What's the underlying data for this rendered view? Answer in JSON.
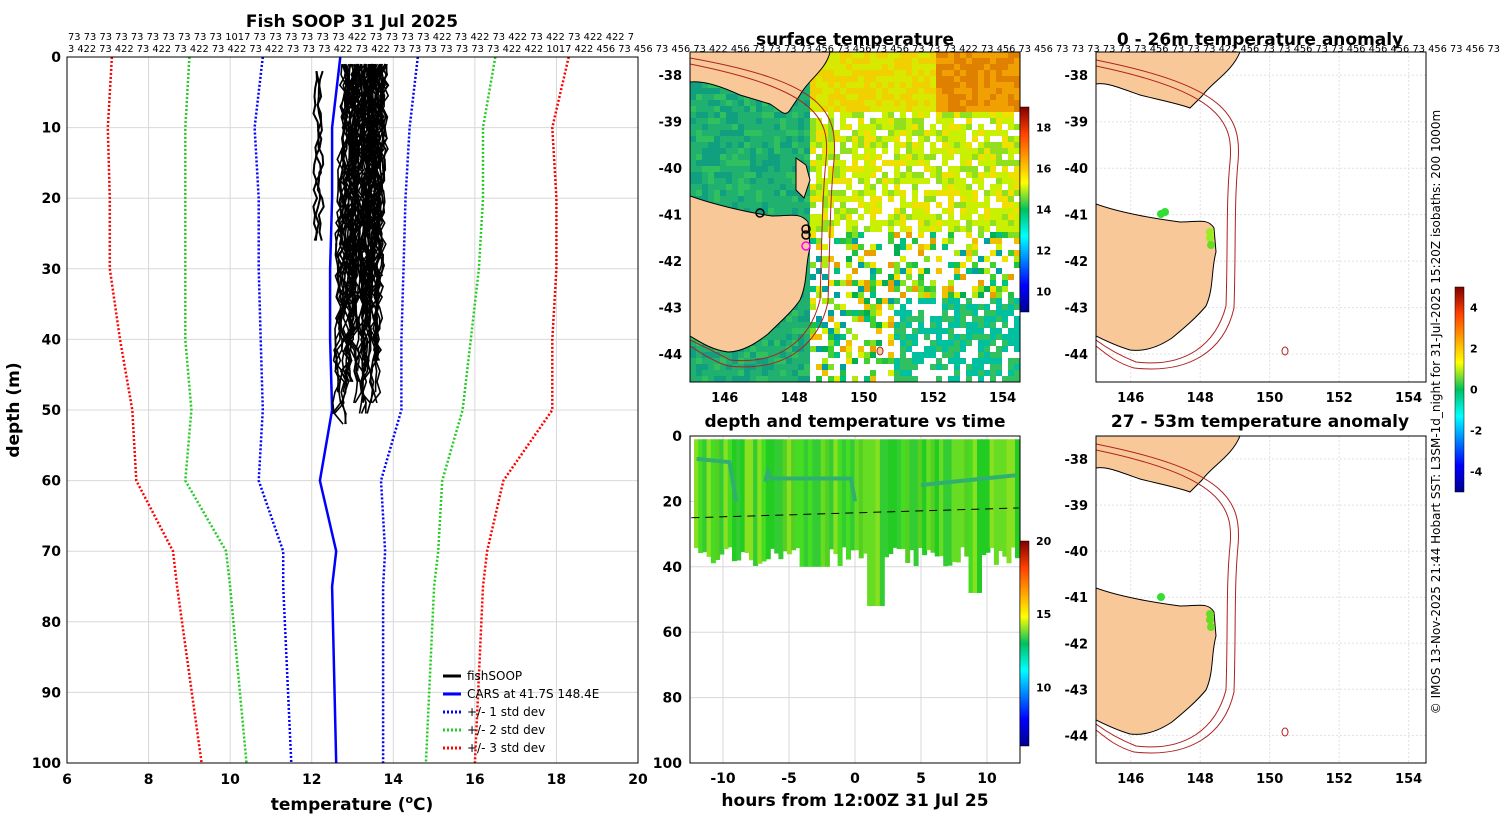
{
  "chart_data": [
    {
      "type": "line",
      "title": "Fish SOOP 31 Jul 2025",
      "xlabel": "temperature (°C)",
      "ylabel": "depth (m)",
      "xlim": [
        6,
        20
      ],
      "ylim": [
        100,
        0
      ],
      "xticks": [
        "6",
        "8",
        "10",
        "12",
        "14",
        "16",
        "18",
        "20"
      ],
      "yticks": [
        "0",
        "10",
        "20",
        "30",
        "40",
        "50",
        "60",
        "70",
        "80",
        "90",
        "100"
      ],
      "top_labels_row1": "73 73 73 73 73 73 73 73 73 73 1017 73 73 73 73 73 73 422 73 73 73 73 422 73 422 73 422 73 422 73 422 422 7",
      "top_labels_row2": "3 422 73 422 73 422 73 422 73 422 73 422 73 73 73 422 73 422 73 73 73 73 73 73 73 422 422 1017 422 456 73 456 73 456 73 422 456 73 73 73 73 456 73 456 73 456 73 73 73 422 73 456 73 456 73 73 73 73 73 73 456 73 73 73 422 456 73 73 456 73 73 456 456 456 73 456 73 456 73",
      "depths": [
        0,
        10,
        20,
        30,
        40,
        50,
        60,
        70,
        75,
        100
      ],
      "series": [
        {
          "name": "CARS at 41.7S 148.4E",
          "color": "#0000ff",
          "style": "solid",
          "values": [
            12.7,
            12.5,
            12.5,
            12.45,
            12.45,
            12.5,
            12.2,
            12.6,
            12.5,
            12.6
          ]
        },
        {
          "name": "+/- 1 std dev",
          "color": "#0000ff",
          "style": "dotted",
          "values": [
            10.8,
            10.6,
            10.7,
            10.7,
            10.75,
            10.8,
            10.7,
            11.3,
            11.3,
            11.5
          ]
        },
        {
          "name": "+/- 1 std dev upper",
          "color": "#0000ff",
          "style": "dotted",
          "values": [
            14.6,
            14.4,
            14.3,
            14.25,
            14.2,
            14.2,
            13.7,
            13.8,
            13.75,
            13.75
          ]
        },
        {
          "name": "+/- 2 std dev",
          "color": "#22cc22",
          "style": "dotted",
          "values": [
            9.0,
            8.9,
            8.9,
            8.9,
            8.9,
            9.05,
            8.9,
            9.9,
            10.0,
            10.4
          ]
        },
        {
          "name": "+/- 2 std dev upper",
          "color": "#22cc22",
          "style": "dotted",
          "values": [
            16.5,
            16.2,
            16.2,
            16.1,
            15.9,
            15.7,
            15.2,
            15.1,
            15.0,
            14.8
          ]
        },
        {
          "name": "+/- 3 std dev",
          "color": "#ff0000",
          "style": "dotted",
          "values": [
            7.1,
            7.0,
            7.05,
            7.05,
            7.3,
            7.6,
            7.7,
            8.6,
            8.7,
            9.3
          ]
        },
        {
          "name": "+/- 3 std dev upper",
          "color": "#ff0000",
          "style": "dotted",
          "values": [
            18.3,
            17.9,
            18.0,
            18.0,
            17.9,
            17.9,
            16.7,
            16.3,
            16.2,
            16.0
          ]
        }
      ],
      "fishsoop": {
        "name": "fishSOOP",
        "color": "#000000",
        "temp_range": [
          12.0,
          14.0
        ],
        "depth_range": [
          1,
          53
        ]
      },
      "legend": [
        "fishSOOP",
        "CARS at 41.7S 148.4E",
        "+/- 1 std dev",
        "+/- 2 std dev",
        "+/- 3 std dev"
      ],
      "legend_position": "bottom-right"
    },
    {
      "type": "heatmap",
      "title": "surface temperature",
      "xticks": [
        "146",
        "148",
        "150",
        "152",
        "154"
      ],
      "yticks": [
        "-38",
        "-39",
        "-40",
        "-41",
        "-42",
        "-43",
        "-44"
      ],
      "colorbar": {
        "ticks": [
          "10",
          "12",
          "14",
          "16",
          "18"
        ],
        "range": [
          9,
          19
        ]
      }
    },
    {
      "type": "scatter",
      "title": "depth and temperature vs time",
      "xlabel": "hours from 12:00Z 31 Jul 25",
      "xticks": [
        "-10",
        "-5",
        "0",
        "5",
        "10"
      ],
      "yticks": [
        "0",
        "20",
        "40",
        "60",
        "80",
        "100"
      ],
      "xlim": [
        -12.5,
        12.5
      ],
      "ylim": [
        100,
        0
      ],
      "colorbar": {
        "ticks": [
          "10",
          "15",
          "20"
        ],
        "range": [
          6,
          20
        ]
      }
    },
    {
      "type": "heatmap",
      "title": "0 - 26m temperature anomaly",
      "xticks": [
        "146",
        "148",
        "150",
        "152",
        "154"
      ],
      "yticks": [
        "-38",
        "-39",
        "-40",
        "-41",
        "-42",
        "-43",
        "-44"
      ]
    },
    {
      "type": "heatmap",
      "title": "27 - 53m temperature anomaly",
      "xticks": [
        "146",
        "148",
        "150",
        "152",
        "154"
      ],
      "yticks": [
        "-38",
        "-39",
        "-40",
        "-41",
        "-42",
        "-43",
        "-44"
      ],
      "colorbar": {
        "ticks": [
          "4",
          "2",
          "0",
          "-2",
          "-4"
        ],
        "range": [
          -5,
          5
        ]
      }
    }
  ],
  "credit": "© IMOS 13-Nov-2025 21:44 Hobart SST: L3SM-1d_night for 31-Jul-2025 15:20Z isobaths: 200  1000m"
}
